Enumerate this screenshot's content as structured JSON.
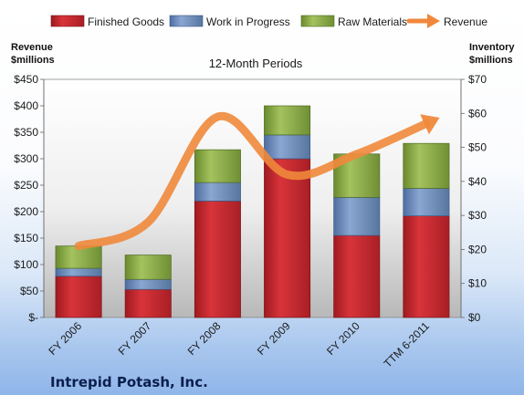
{
  "chart_data": {
    "type": "bar",
    "subtitle": "12-Month Periods",
    "categories": [
      "FY 2006",
      "FY 2007",
      "FY 2008",
      "FY 2009",
      "FY 2010",
      "TTM 6-2011"
    ],
    "series": [
      {
        "name": "Finished Goods",
        "kind": "stacked-bar",
        "axis": "left",
        "color": "#c0272d",
        "values": [
          78,
          53,
          220,
          300,
          155,
          192
        ]
      },
      {
        "name": "Work in Progress",
        "kind": "stacked-bar",
        "axis": "left",
        "color": "#6f8fc0",
        "values": [
          15,
          19,
          35,
          45,
          72,
          52
        ]
      },
      {
        "name": "Raw Materials",
        "kind": "stacked-bar",
        "axis": "left",
        "color": "#8cab48",
        "values": [
          42,
          46,
          62,
          55,
          82,
          85
        ]
      },
      {
        "name": "Revenue",
        "kind": "line",
        "axis": "right",
        "color": "#f0883b",
        "values": [
          21,
          28,
          59,
          42,
          48,
          57
        ]
      }
    ],
    "left_axis": {
      "label_line1": "Revenue",
      "label_line2": "$millions",
      "min": 0,
      "max": 450,
      "step": 50,
      "tick_labels": [
        "$-",
        "$50",
        "$100",
        "$150",
        "$200",
        "$250",
        "$300",
        "$350",
        "$400",
        "$450"
      ]
    },
    "right_axis": {
      "label_line1": "Inventory",
      "label_line2": "$millions",
      "min": 0,
      "max": 70,
      "step": 10,
      "tick_labels": [
        "$0",
        "$10",
        "$20",
        "$30",
        "$40",
        "$50",
        "$60",
        "$70"
      ]
    },
    "grid": false,
    "legend_position": "top"
  },
  "footer_title": "Intrepid Potash, Inc."
}
